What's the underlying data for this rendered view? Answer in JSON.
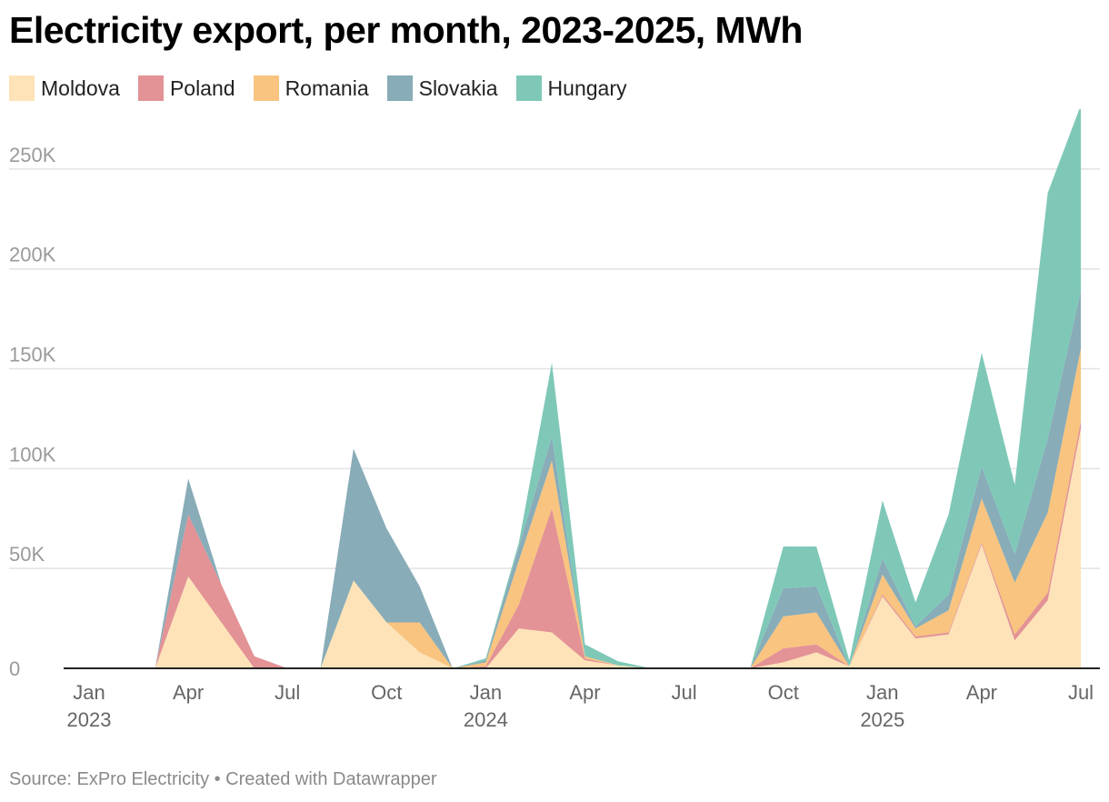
{
  "title": "Electricity export, per month, 2023-2025, MWh",
  "source": "Source: ExPro Electricity • Created with Datawrapper",
  "chart_data": {
    "type": "area",
    "stacked": true,
    "x": [
      "2023-01",
      "2023-02",
      "2023-03",
      "2023-04",
      "2023-05",
      "2023-06",
      "2023-07",
      "2023-08",
      "2023-09",
      "2023-10",
      "2023-11",
      "2023-12",
      "2024-01",
      "2024-02",
      "2024-03",
      "2024-04",
      "2024-05",
      "2024-06",
      "2024-07",
      "2024-08",
      "2024-09",
      "2024-10",
      "2024-11",
      "2024-12",
      "2025-01",
      "2025-02",
      "2025-03",
      "2025-04",
      "2025-05",
      "2025-06",
      "2025-07"
    ],
    "series": [
      {
        "name": "Moldova",
        "color": "#fde3b7",
        "values": [
          0,
          0,
          0,
          46000,
          23000,
          0,
          0,
          0,
          44000,
          23000,
          8000,
          0,
          0,
          20000,
          18000,
          4000,
          1500,
          0,
          0,
          0,
          0,
          3000,
          8000,
          1000,
          36000,
          15000,
          17000,
          62000,
          14000,
          34000,
          120000
        ]
      },
      {
        "name": "Poland",
        "color": "#e39295",
        "values": [
          0,
          0,
          0,
          31000,
          19000,
          6000,
          0,
          0,
          0,
          0,
          0,
          0,
          1000,
          12000,
          62000,
          1000,
          0,
          0,
          0,
          0,
          0,
          7000,
          4000,
          0,
          1000,
          1000,
          1000,
          1000,
          3000,
          4000,
          4000
        ]
      },
      {
        "name": "Romania",
        "color": "#f8c47f",
        "values": [
          0,
          0,
          0,
          0,
          0,
          0,
          0,
          0,
          0,
          0,
          15000,
          0,
          2000,
          22000,
          24000,
          1000,
          0,
          0,
          0,
          0,
          0,
          16000,
          16000,
          0,
          10000,
          4000,
          11000,
          22000,
          26000,
          40000,
          36000
        ]
      },
      {
        "name": "Slovakia",
        "color": "#88acb8",
        "values": [
          0,
          0,
          0,
          18000,
          0,
          0,
          0,
          0,
          66000,
          47000,
          18000,
          0,
          1000,
          7000,
          12000,
          0,
          0,
          0,
          0,
          0,
          0,
          14000,
          13000,
          0,
          8000,
          1000,
          8000,
          16000,
          14000,
          37000,
          29000
        ]
      },
      {
        "name": "Hungary",
        "color": "#7fc8b8",
        "values": [
          0,
          0,
          0,
          0,
          0,
          0,
          0,
          0,
          0,
          0,
          0,
          0,
          1000,
          2000,
          37000,
          6000,
          2000,
          0,
          0,
          0,
          0,
          21000,
          20000,
          3000,
          29000,
          12000,
          40000,
          57000,
          35000,
          123000,
          93000
        ]
      }
    ],
    "ylim": [
      0,
      280000
    ],
    "yticks": [
      0,
      50000,
      100000,
      150000,
      200000,
      250000
    ],
    "ytick_labels": [
      "0",
      "50K",
      "100K",
      "150K",
      "200K",
      "250K"
    ],
    "xticks": [
      {
        "x": "2023-01",
        "label": "Jan",
        "year": "2023"
      },
      {
        "x": "2023-04",
        "label": "Apr",
        "year": ""
      },
      {
        "x": "2023-07",
        "label": "Jul",
        "year": ""
      },
      {
        "x": "2023-10",
        "label": "Oct",
        "year": ""
      },
      {
        "x": "2024-01",
        "label": "Jan",
        "year": "2024"
      },
      {
        "x": "2024-04",
        "label": "Apr",
        "year": ""
      },
      {
        "x": "2024-07",
        "label": "Jul",
        "year": ""
      },
      {
        "x": "2024-10",
        "label": "Oct",
        "year": ""
      },
      {
        "x": "2025-01",
        "label": "Jan",
        "year": "2025"
      },
      {
        "x": "2025-04",
        "label": "Apr",
        "year": ""
      },
      {
        "x": "2025-07",
        "label": "Jul",
        "year": ""
      }
    ],
    "grid": true,
    "legend_position": "top-left"
  }
}
